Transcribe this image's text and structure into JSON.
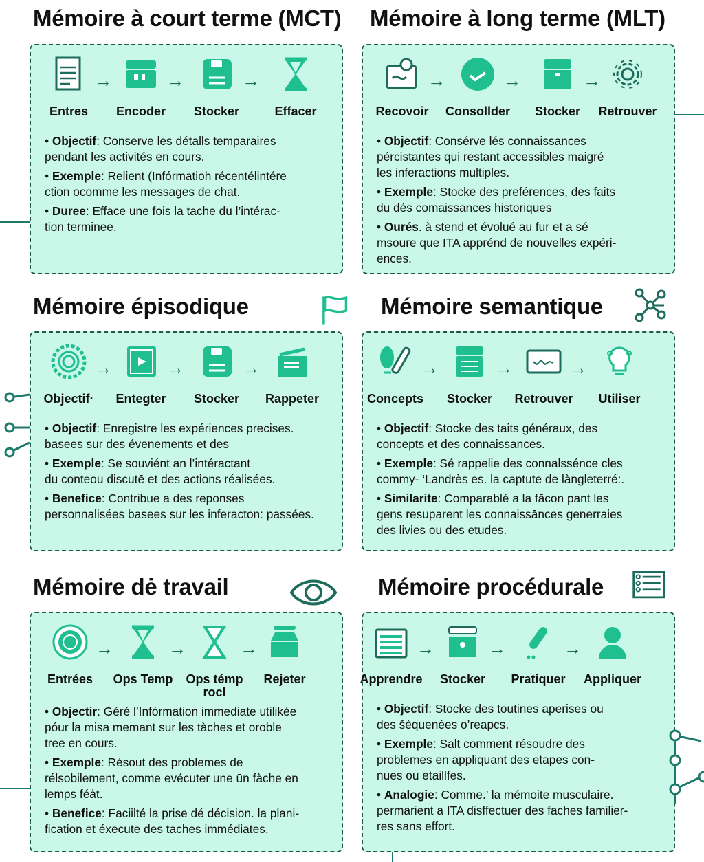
{
  "colors": {
    "panel_bg": "#c9f7e8",
    "border": "#1d5a4c",
    "icon": "#1fbf90",
    "icon_dark": "#1d6b5a"
  },
  "panels": [
    {
      "title": "Mémoire à court terme (MCT)",
      "steps": [
        {
          "label": "Entres",
          "icon": "document-icon"
        },
        {
          "label": "Encoder",
          "icon": "box-icon"
        },
        {
          "label": "Stocker",
          "icon": "floppy-icon"
        },
        {
          "label": "Effacer",
          "icon": "hourglass-icon"
        }
      ],
      "bullets": [
        {
          "label": "Objectif",
          "text": ": Conserve les détalls temparaires\npendant les activités en cours."
        },
        {
          "label": "Exemple",
          "text": ": Relient  (Infórmatioh récentélintére\nction ocomme les messages de chat."
        },
        {
          "label": "Duree",
          "text": ": Efface une fois la tache du l’intérac-\ntion terminee."
        }
      ]
    },
    {
      "title": "Mémoire à long terme (MLT)",
      "steps": [
        {
          "label": "Recovoir",
          "icon": "photo-icon"
        },
        {
          "label": "Consollder",
          "icon": "check-circle-icon"
        },
        {
          "label": "Stocker",
          "icon": "chest-icon"
        },
        {
          "label": "Retrouver",
          "icon": "gear-icon"
        }
      ],
      "bullets": [
        {
          "label": "Objectif",
          "text": ": Consérve lés connaissances\npércistantes qui restant accessibles maigré\nles inferactions multiples."
        },
        {
          "label": "Exemple",
          "text": ": Stocke des preférences, des faits\ndu dés comaissances historiques"
        },
        {
          "label": "Ourés",
          "text": ". à stend et évolué au fur et a sé\nmsoure que ITA apprénd de nouvelles expéri-\nences."
        }
      ]
    },
    {
      "title": "Mémoire épisodique",
      "steps": [
        {
          "label": "Objectif·",
          "icon": "badge-icon"
        },
        {
          "label": "Entegter",
          "icon": "play-frame-icon"
        },
        {
          "label": "Stocker",
          "icon": "floppy-icon"
        },
        {
          "label": "Rappeter",
          "icon": "tray-icon"
        }
      ],
      "bullets": [
        {
          "label": "Objectif",
          "text": ": Enregistre les expériences precises.\nbasees sur des évenements et des"
        },
        {
          "label": "Exemple",
          "text": ": Se souviént an l’intéractant\ndu conteou discutē et des actions réalisées."
        },
        {
          "label": "Benefice",
          "text": ": Contribue a des reponses\npersonnalisées basees sur les inferacton: passées."
        }
      ]
    },
    {
      "title": "Mémoire semantique",
      "steps": [
        {
          "label": "Concepts",
          "icon": "test-tube-icon"
        },
        {
          "label": "Stocker",
          "icon": "stack-icon"
        },
        {
          "label": "Retrouver",
          "icon": "monitor-icon"
        },
        {
          "label": "Utiliser",
          "icon": "lightbulb-icon"
        }
      ],
      "bullets": [
        {
          "label": "Objectif",
          "text": ": Stocke des taits généraux, des\nconcepts et des connaissances."
        },
        {
          "label": "Exemple",
          "text": ": Sé rappelie des connalssénce cles\ncommy- ‘Landrès es. la captute de làngleterré:."
        },
        {
          "label": "Similarite",
          "text": ": Comparablé a la fācon pant les\ngens resuparent les connaissānces generraies\ndes livies ou des etudes."
        }
      ]
    },
    {
      "title": "Mémoire dė travail",
      "steps": [
        {
          "label": "Entrées",
          "icon": "coin-icon"
        },
        {
          "label": "Ops Temp",
          "icon": "hourglass-icon"
        },
        {
          "label": "Ops témp\nrocl",
          "icon": "hourglass-outline-icon"
        },
        {
          "label": "Rejeter",
          "icon": "jar-icon"
        }
      ],
      "bullets": [
        {
          "label": "Objectir",
          "text": ": Géré l’Infórmation immediate utilikée\npóur la misa memant sur les tàches et oroble\ntree en cours."
        },
        {
          "label": "Exemple",
          "text": ": Résout des problemes de\nrélsobilement, comme evécuter une ūn fàche en\nlemps féȧt."
        },
        {
          "label": "Benefice",
          "text": ": Faciilté la prise dé décision. la plani-\nfication et éxecute des taches immédiates."
        }
      ]
    },
    {
      "title": "Mémoire procédurale",
      "steps": [
        {
          "label": "Apprendre",
          "icon": "calendar-icon"
        },
        {
          "label": "Stocker",
          "icon": "window-box-icon"
        },
        {
          "label": "Pratiquer",
          "icon": "brush-icon"
        },
        {
          "label": "Appliquer",
          "icon": "person-icon"
        }
      ],
      "bullets": [
        {
          "label": "Objectif",
          "text": ": Stocke des toutines aperises ou\ndes šèquenées o’reapcs."
        },
        {
          "label": "Exemple",
          "text": ": Salt comment résoudre des\nproblemes en appliquant des etapes con-\nnues ou etaillfes."
        },
        {
          "label": "Analogie",
          "text": ": Comme.’ la mémoite musculaire.\npermarient a ITA disffectuer des faches familier-\nres sans effort."
        }
      ]
    }
  ],
  "decorations": [
    "flag-icon",
    "network-icon",
    "eye-icon",
    "checklist-icon"
  ]
}
